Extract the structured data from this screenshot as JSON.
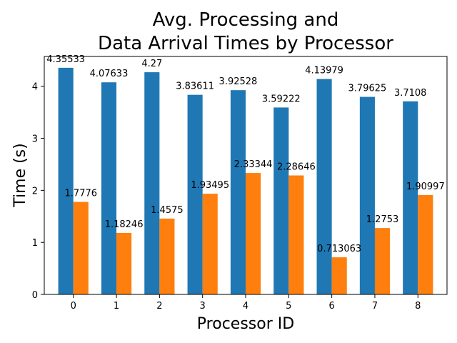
{
  "chart_data": {
    "type": "bar",
    "title": [
      "Avg. Processing and",
      "Data Arrival Times by Processor"
    ],
    "xlabel": "Processor ID",
    "ylabel": "Time (s)",
    "categories": [
      "0",
      "1",
      "2",
      "3",
      "4",
      "5",
      "6",
      "7",
      "8"
    ],
    "ylim": [
      0,
      4.5733
    ],
    "yticks": [
      "0",
      "1",
      "2",
      "3",
      "4"
    ],
    "series": [
      {
        "color": "#1f77b4",
        "values": [
          4.35533,
          4.07633,
          4.27,
          3.83611,
          3.92528,
          3.59222,
          4.13979,
          3.79625,
          3.7108
        ],
        "labels": [
          "4.35533",
          "4.07633",
          "4.27",
          "3.83611",
          "3.92528",
          "3.59222",
          "4.13979",
          "3.79625",
          "3.7108"
        ]
      },
      {
        "color": "#ff7f0e",
        "values": [
          1.7776,
          1.18246,
          1.4575,
          1.93495,
          2.33344,
          2.28646,
          0.713063,
          1.2753,
          1.90997
        ],
        "labels": [
          "1.7776",
          "1.18246",
          "1.4575",
          "1.93495",
          "2.33344",
          "2.28646",
          "0.713063",
          "1.2753",
          "1.90997"
        ]
      }
    ],
    "grid": false,
    "legend": "none"
  }
}
